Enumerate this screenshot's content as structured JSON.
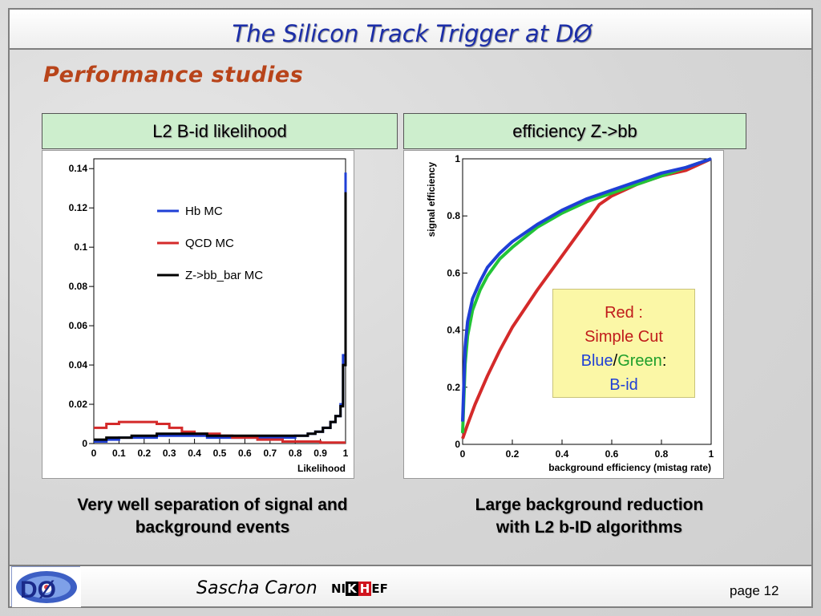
{
  "slide": {
    "title": "The Silicon Track Trigger at DØ",
    "subtitle": "Performance studies",
    "left_panel_title": "L2 B-id likelihood",
    "right_panel_title": "efficiency Z->bb",
    "left_caption_line1": "Very well separation of signal and",
    "left_caption_line2": "background events",
    "right_caption_line1": "Large background reduction",
    "right_caption_line2": "with L2 b-ID algorithms",
    "author": "Sascha Caron",
    "page": "page 12",
    "logo_text": "DØ",
    "nikhef_parts": [
      "NI",
      "K",
      "H",
      "EF"
    ]
  },
  "legend_box": {
    "line1": "Red :",
    "line2": "Simple Cut",
    "blue": "Blue",
    "slash": "/",
    "green": "Green",
    "colon": ":",
    "line4": "B-id"
  },
  "colors": {
    "title": "#1c2ea8",
    "subtitle": "#b8441a",
    "panel_header_bg": "#cdeecd",
    "legend_box_bg": "#fbf7a6",
    "blue": "#1f3fd6",
    "red": "#d42a2a",
    "green": "#22c437",
    "black": "#000000"
  },
  "chart_data": [
    {
      "type": "line",
      "xlabel": "Likelihood",
      "ylabel": "",
      "xlim": [
        0,
        1
      ],
      "ylim": [
        0,
        0.145
      ],
      "xticks": [
        "0",
        "0.1",
        "0.2",
        "0.3",
        "0.4",
        "0.5",
        "0.6",
        "0.7",
        "0.8",
        "0.9",
        "1"
      ],
      "yticks": [
        "0",
        "0.02",
        "0.04",
        "0.06",
        "0.08",
        "0.1",
        "0.12",
        "0.14"
      ],
      "legend_position": "top-left",
      "series": [
        {
          "name": "Hb MC",
          "color": "#1f3fd6",
          "x": [
            0,
            0.05,
            0.1,
            0.15,
            0.2,
            0.25,
            0.3,
            0.35,
            0.4,
            0.45,
            0.5,
            0.55,
            0.6,
            0.65,
            0.7,
            0.75,
            0.8,
            0.85,
            0.88,
            0.91,
            0.94,
            0.96,
            0.98,
            0.99,
            1.0
          ],
          "values": [
            0.001,
            0.002,
            0.003,
            0.003,
            0.003,
            0.004,
            0.004,
            0.004,
            0.004,
            0.003,
            0.003,
            0.003,
            0.003,
            0.003,
            0.003,
            0.003,
            0.004,
            0.005,
            0.006,
            0.008,
            0.011,
            0.014,
            0.02,
            0.045,
            0.138
          ]
        },
        {
          "name": "QCD MC",
          "color": "#d42a2a",
          "x": [
            0,
            0.05,
            0.1,
            0.15,
            0.2,
            0.25,
            0.3,
            0.35,
            0.4,
            0.45,
            0.5,
            0.55,
            0.6,
            0.65,
            0.7,
            0.75,
            0.8,
            0.85,
            0.9,
            0.95,
            1.0
          ],
          "values": [
            0.008,
            0.01,
            0.011,
            0.011,
            0.011,
            0.01,
            0.008,
            0.006,
            0.005,
            0.005,
            0.004,
            0.003,
            0.003,
            0.002,
            0.002,
            0.001,
            0.001,
            0.001,
            0.0005,
            0.0005,
            0.0005
          ]
        },
        {
          "name": "Z->bb_bar MC",
          "color": "#000000",
          "x": [
            0,
            0.05,
            0.1,
            0.15,
            0.2,
            0.25,
            0.3,
            0.35,
            0.4,
            0.45,
            0.5,
            0.55,
            0.6,
            0.65,
            0.7,
            0.75,
            0.8,
            0.85,
            0.88,
            0.91,
            0.94,
            0.96,
            0.98,
            0.99,
            1.0
          ],
          "values": [
            0.002,
            0.003,
            0.003,
            0.004,
            0.004,
            0.005,
            0.005,
            0.005,
            0.005,
            0.004,
            0.004,
            0.004,
            0.004,
            0.004,
            0.004,
            0.004,
            0.004,
            0.005,
            0.006,
            0.008,
            0.011,
            0.014,
            0.019,
            0.04,
            0.128
          ]
        }
      ]
    },
    {
      "type": "line",
      "xlabel": "background efficiency (mistag rate)",
      "ylabel": "signal efficiency",
      "xlim": [
        0,
        1
      ],
      "ylim": [
        0,
        1
      ],
      "xticks": [
        "0",
        "0.2",
        "0.4",
        "0.6",
        "0.8",
        "1"
      ],
      "yticks": [
        "0",
        "0.2",
        "0.4",
        "0.6",
        "0.8",
        "1"
      ],
      "series": [
        {
          "name": "Red",
          "color": "#d42a2a",
          "x": [
            0,
            0.02,
            0.05,
            0.1,
            0.15,
            0.2,
            0.3,
            0.4,
            0.5,
            0.55,
            0.6,
            0.7,
            0.8,
            0.9,
            1.0
          ],
          "values": [
            0.02,
            0.07,
            0.14,
            0.24,
            0.33,
            0.41,
            0.54,
            0.66,
            0.78,
            0.84,
            0.87,
            0.91,
            0.94,
            0.96,
            1.0
          ]
        },
        {
          "name": "Green",
          "color": "#22c437",
          "x": [
            0,
            0.01,
            0.02,
            0.04,
            0.07,
            0.1,
            0.15,
            0.2,
            0.3,
            0.4,
            0.5,
            0.6,
            0.7,
            0.8,
            0.9,
            1.0
          ],
          "values": [
            0.04,
            0.28,
            0.38,
            0.47,
            0.54,
            0.59,
            0.65,
            0.69,
            0.76,
            0.81,
            0.85,
            0.88,
            0.91,
            0.94,
            0.97,
            1.0
          ]
        },
        {
          "name": "Blue",
          "color": "#1f3fd6",
          "x": [
            0,
            0.01,
            0.02,
            0.04,
            0.07,
            0.1,
            0.15,
            0.2,
            0.3,
            0.4,
            0.5,
            0.6,
            0.7,
            0.8,
            0.9,
            1.0
          ],
          "values": [
            0.08,
            0.34,
            0.43,
            0.51,
            0.57,
            0.62,
            0.67,
            0.71,
            0.77,
            0.82,
            0.86,
            0.89,
            0.92,
            0.95,
            0.97,
            1.0
          ]
        }
      ]
    }
  ]
}
